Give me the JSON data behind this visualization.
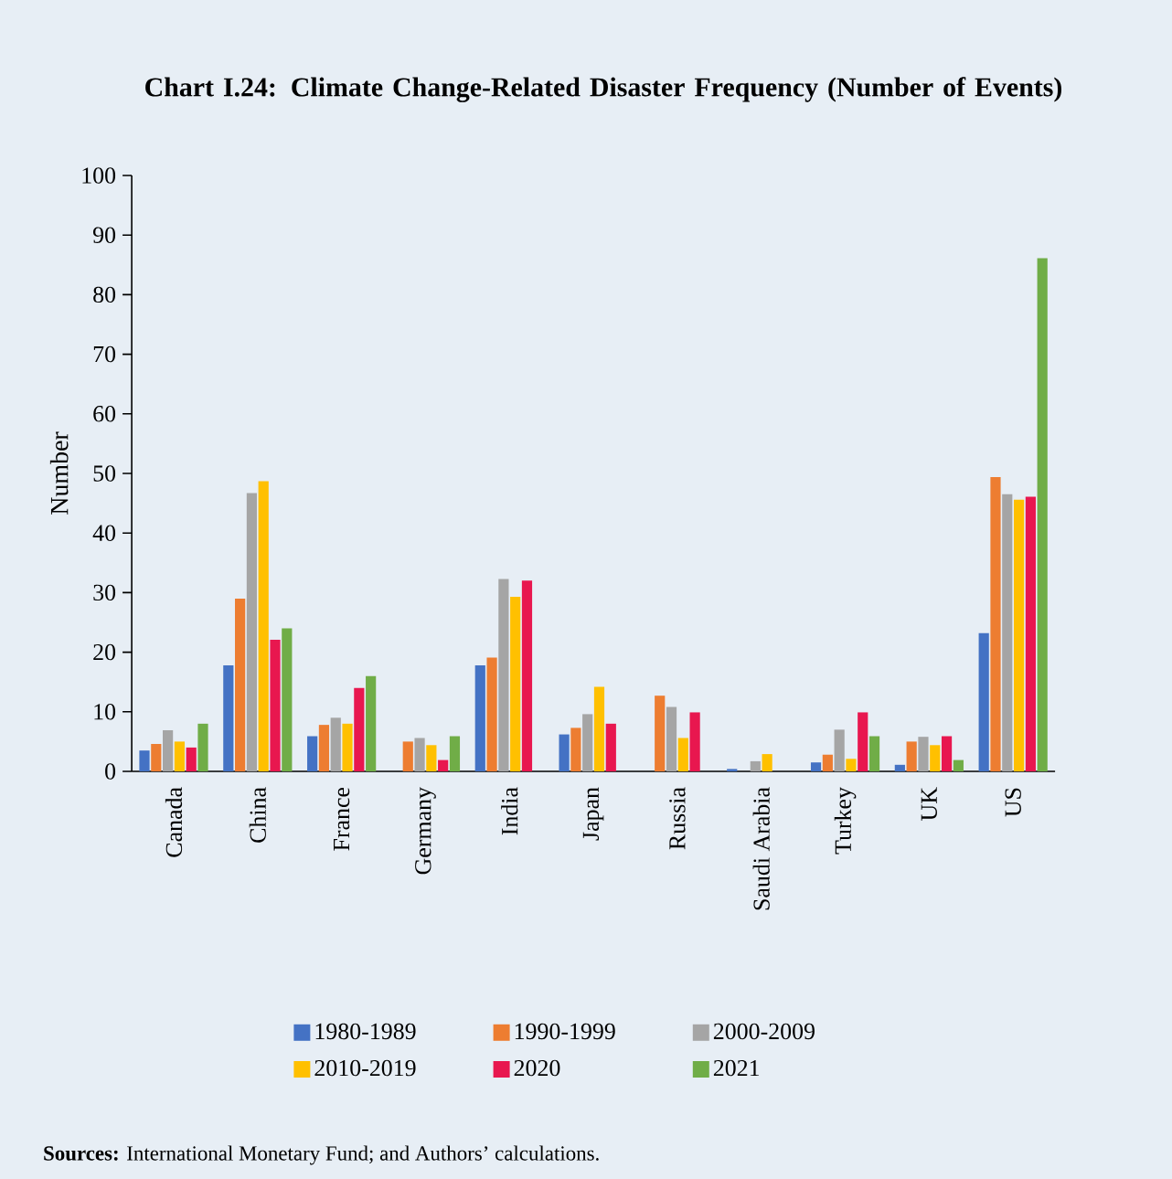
{
  "chart_data": {
    "type": "bar",
    "title": "Chart I.24: Climate Change-Related Disaster Frequency (Number of Events)",
    "ylabel": "Number",
    "categories": [
      "Canada",
      "China",
      "France",
      "Germany",
      "India",
      "Japan",
      "Russia",
      "Saudi Arabia",
      "Turkey",
      "UK",
      "US"
    ],
    "series": [
      {
        "name": "1980-1989",
        "color": "#4472c4",
        "values": [
          3.5,
          17.8,
          5.9,
          0,
          17.8,
          6.2,
          0,
          0.4,
          1.5,
          1.1,
          23.2
        ]
      },
      {
        "name": "1990-1999",
        "color": "#ed7d31",
        "values": [
          4.6,
          29,
          7.8,
          5.0,
          19.1,
          7.3,
          12.7,
          0,
          2.8,
          5.0,
          49.4
        ]
      },
      {
        "name": "2000-2009",
        "color": "#a5a5a5",
        "values": [
          6.9,
          46.7,
          9.0,
          5.6,
          32.3,
          9.6,
          10.8,
          1.7,
          7.0,
          5.8,
          46.5
        ]
      },
      {
        "name": "2010-2019",
        "color": "#ffc000",
        "values": [
          5.0,
          48.7,
          8.0,
          4.4,
          29.3,
          14.2,
          5.6,
          2.9,
          2.1,
          4.4,
          45.6
        ]
      },
      {
        "name": "2020",
        "color": "#e8174f",
        "values": [
          4.0,
          22.1,
          14.0,
          1.9,
          32.0,
          8.0,
          9.9,
          0,
          9.9,
          5.9,
          46.1
        ]
      },
      {
        "name": "2021",
        "color": "#70ad47",
        "values": [
          8.0,
          24,
          16.0,
          5.9,
          0,
          0,
          0,
          0,
          5.9,
          1.9,
          86.1
        ]
      }
    ],
    "ylim": [
      0,
      100
    ],
    "yticks": [
      0,
      10,
      20,
      30,
      40,
      50,
      60,
      70,
      80,
      90,
      100
    ],
    "grid": false,
    "legend": "bottom",
    "annotations": [
      "**Sources:** International Monetary Fund; and Authors’ calculations."
    ]
  }
}
